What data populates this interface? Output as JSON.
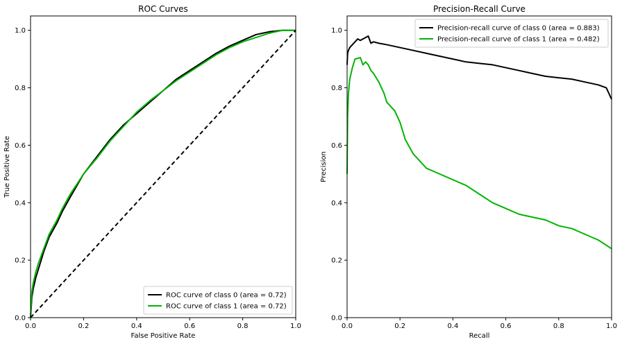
{
  "chart_data": [
    {
      "type": "line",
      "title": "ROC Curves",
      "xlabel": "False Positive Rate",
      "ylabel": "True Positive Rate",
      "xlim": [
        0.0,
        1.0
      ],
      "ylim": [
        0.0,
        1.05
      ],
      "xticks": [
        "0.0",
        "0.2",
        "0.4",
        "0.6",
        "0.8",
        "1.0"
      ],
      "yticks": [
        "0.0",
        "0.2",
        "0.4",
        "0.6",
        "0.8",
        "1.0"
      ],
      "grid": false,
      "legend_position": "lower-right",
      "series": [
        {
          "name": "ROC curve of class 0 (area = 0.72)",
          "color": "#000000",
          "x": [
            0.0,
            0.005,
            0.01,
            0.02,
            0.03,
            0.05,
            0.07,
            0.1,
            0.12,
            0.15,
            0.2,
            0.25,
            0.3,
            0.35,
            0.4,
            0.45,
            0.5,
            0.55,
            0.6,
            0.65,
            0.7,
            0.75,
            0.8,
            0.85,
            0.9,
            0.95,
            1.0
          ],
          "y": [
            0.0,
            0.07,
            0.1,
            0.14,
            0.17,
            0.23,
            0.28,
            0.33,
            0.37,
            0.42,
            0.5,
            0.56,
            0.62,
            0.67,
            0.71,
            0.75,
            0.79,
            0.83,
            0.86,
            0.89,
            0.92,
            0.945,
            0.965,
            0.985,
            0.995,
            1.0,
            1.0
          ]
        },
        {
          "name": "ROC curve of class 1 (area = 0.72)",
          "color": "#00b400",
          "x": [
            0.0,
            0.005,
            0.01,
            0.02,
            0.03,
            0.05,
            0.07,
            0.1,
            0.12,
            0.15,
            0.2,
            0.25,
            0.3,
            0.35,
            0.4,
            0.45,
            0.5,
            0.55,
            0.6,
            0.65,
            0.7,
            0.75,
            0.8,
            0.85,
            0.9,
            0.95,
            1.0
          ],
          "y": [
            0.0,
            0.09,
            0.12,
            0.16,
            0.19,
            0.24,
            0.29,
            0.34,
            0.38,
            0.43,
            0.5,
            0.555,
            0.615,
            0.665,
            0.715,
            0.755,
            0.79,
            0.825,
            0.855,
            0.885,
            0.915,
            0.94,
            0.96,
            0.975,
            0.99,
            1.0,
            1.0
          ]
        },
        {
          "name": "",
          "color": "#000000",
          "dashed": true,
          "x": [
            0.0,
            1.0
          ],
          "y": [
            0.0,
            1.0
          ]
        }
      ]
    },
    {
      "type": "line",
      "title": "Precision-Recall Curve",
      "xlabel": "Recall",
      "ylabel": "Precision",
      "xlim": [
        0.0,
        1.0
      ],
      "ylim": [
        0.0,
        1.05
      ],
      "xticks": [
        "0.0",
        "0.2",
        "0.4",
        "0.6",
        "0.8",
        "1.0"
      ],
      "yticks": [
        "0.0",
        "0.2",
        "0.4",
        "0.6",
        "0.8",
        "1.0"
      ],
      "grid": false,
      "legend_position": "top-right",
      "series": [
        {
          "name": "Precision-recall curve of class 0 (area = 0.883)",
          "color": "#000000",
          "x": [
            0.0,
            0.002,
            0.005,
            0.01,
            0.02,
            0.03,
            0.04,
            0.05,
            0.06,
            0.07,
            0.08,
            0.09,
            0.1,
            0.12,
            0.15,
            0.2,
            0.25,
            0.3,
            0.35,
            0.4,
            0.45,
            0.5,
            0.55,
            0.6,
            0.65,
            0.7,
            0.75,
            0.8,
            0.85,
            0.9,
            0.95,
            0.98,
            1.0
          ],
          "y": [
            0.88,
            0.92,
            0.93,
            0.94,
            0.95,
            0.96,
            0.97,
            0.965,
            0.97,
            0.975,
            0.98,
            0.955,
            0.96,
            0.955,
            0.95,
            0.94,
            0.93,
            0.92,
            0.91,
            0.9,
            0.89,
            0.885,
            0.88,
            0.87,
            0.86,
            0.85,
            0.84,
            0.835,
            0.83,
            0.82,
            0.81,
            0.8,
            0.76
          ]
        },
        {
          "name": "Precision-recall curve of class 1 (area = 0.482)",
          "color": "#00b400",
          "x": [
            0.0,
            0.002,
            0.005,
            0.01,
            0.02,
            0.03,
            0.05,
            0.06,
            0.07,
            0.08,
            0.09,
            0.1,
            0.12,
            0.14,
            0.15,
            0.18,
            0.2,
            0.22,
            0.25,
            0.3,
            0.35,
            0.4,
            0.45,
            0.5,
            0.55,
            0.6,
            0.65,
            0.7,
            0.75,
            0.8,
            0.85,
            0.9,
            0.95,
            1.0
          ],
          "y": [
            0.5,
            0.7,
            0.78,
            0.83,
            0.87,
            0.9,
            0.905,
            0.88,
            0.89,
            0.88,
            0.86,
            0.85,
            0.82,
            0.78,
            0.75,
            0.72,
            0.68,
            0.62,
            0.57,
            0.52,
            0.5,
            0.48,
            0.46,
            0.43,
            0.4,
            0.38,
            0.36,
            0.35,
            0.34,
            0.32,
            0.31,
            0.29,
            0.27,
            0.24
          ]
        }
      ]
    }
  ]
}
